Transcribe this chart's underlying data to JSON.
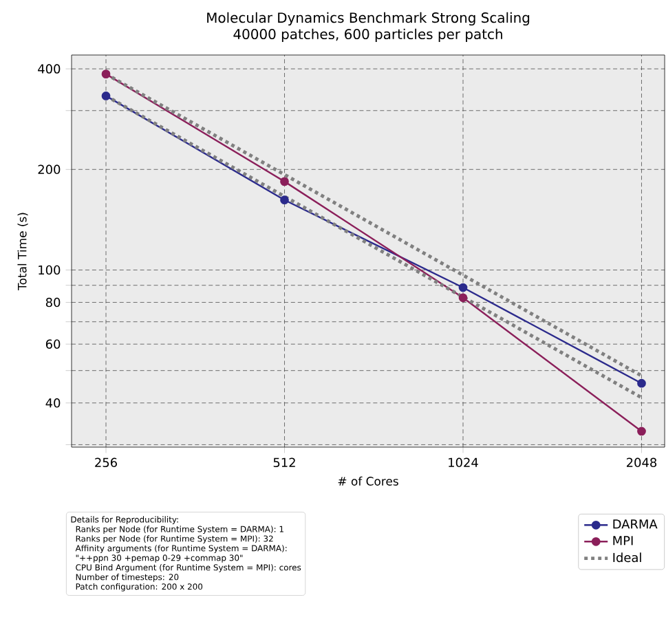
{
  "chart_data": {
    "type": "line",
    "title": "Molecular Dynamics Benchmark Strong Scaling",
    "subtitle": "40000 patches, 600 particles per patch",
    "xlabel": "# of Cores",
    "ylabel": "Total Time (s)",
    "x": [
      256,
      512,
      1024,
      2048
    ],
    "series": [
      {
        "name": "DARMA",
        "color": "#2b2a8c",
        "values": [
          332,
          162,
          88.6,
          45.8
        ],
        "marker": "circle",
        "line_style": "solid"
      },
      {
        "name": "MPI",
        "color": "#8b1f5a",
        "values": [
          386,
          184,
          82.6,
          32.9
        ],
        "marker": "circle",
        "line_style": "solid"
      },
      {
        "name": "Ideal",
        "color": "#808080",
        "values": [
          332,
          166,
          83,
          41.5
        ],
        "marker": "none",
        "line_style": "dotted"
      },
      {
        "color": "#808080",
        "values": [
          386,
          193,
          96.5,
          48.25
        ],
        "marker": "none",
        "line_style": "dotted"
      }
    ],
    "log": "xy",
    "xlim": [
      224,
      2240
    ],
    "ylim": [
      29.5,
      440
    ],
    "xticks": [
      256,
      512,
      1024,
      2048
    ],
    "yticks": [
      {
        "value": 30,
        "label": null
      },
      40,
      {
        "value": 50,
        "label": null
      },
      60,
      {
        "value": 70,
        "label": null
      },
      80,
      {
        "value": 90,
        "label": null
      },
      100,
      200,
      {
        "value": 300,
        "label": null
      },
      400
    ],
    "grid": true,
    "legend": "bottom right",
    "annotations": [
      "Details for Reproducibility:",
      "Ranks per Node (for Runtime System = DARMA):  1",
      "Ranks per Node (for Runtime System = MPI):  32",
      "Affinity arguments (for Runtime System = DARMA):",
      "\"++ppn 30 +pemap 0-29 +commap 30\"",
      "CPU Bind Argument (for Runtime System = MPI):  cores",
      "Number of timesteps:  20",
      "Patch configuration: 200 x 200"
    ]
  }
}
